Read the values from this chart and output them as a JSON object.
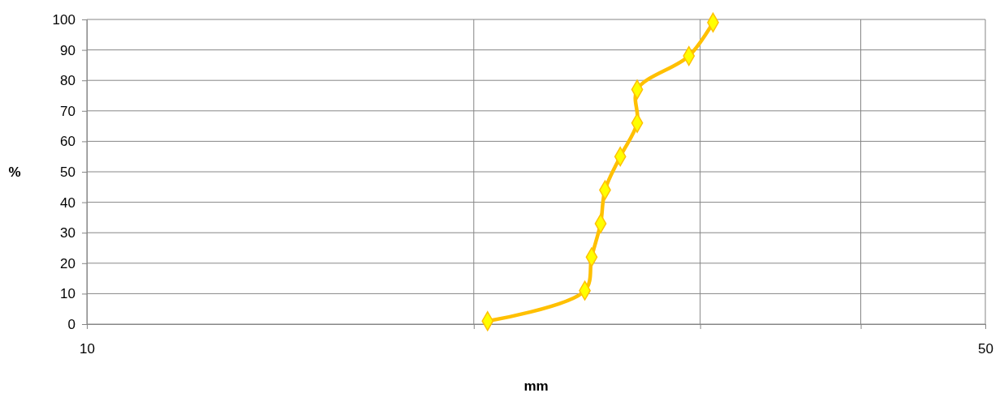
{
  "chart_data": {
    "type": "line",
    "xlabel": "mm",
    "ylabel": "%",
    "log": "x",
    "xlim": [
      10,
      50
    ],
    "xticks": [
      10,
      {
        "value": 20,
        "label": null
      },
      {
        "value": 30,
        "label": null
      },
      {
        "value": 40,
        "label": null
      },
      50
    ],
    "ylim": [
      0,
      100
    ],
    "yticks": [
      0,
      10,
      20,
      30,
      40,
      50,
      60,
      70,
      80,
      90,
      100
    ],
    "grid": true,
    "marker": "diamond",
    "line_style": "solid",
    "series": [
      {
        "color": "#ffc000",
        "x": [
          20.5,
          24.4,
          24.7,
          25.1,
          25.3,
          26.0,
          26.8,
          26.8,
          29.4,
          30.7
        ],
        "values": [
          1,
          11,
          22,
          33,
          44,
          55,
          66,
          77,
          88,
          99
        ]
      }
    ]
  }
}
